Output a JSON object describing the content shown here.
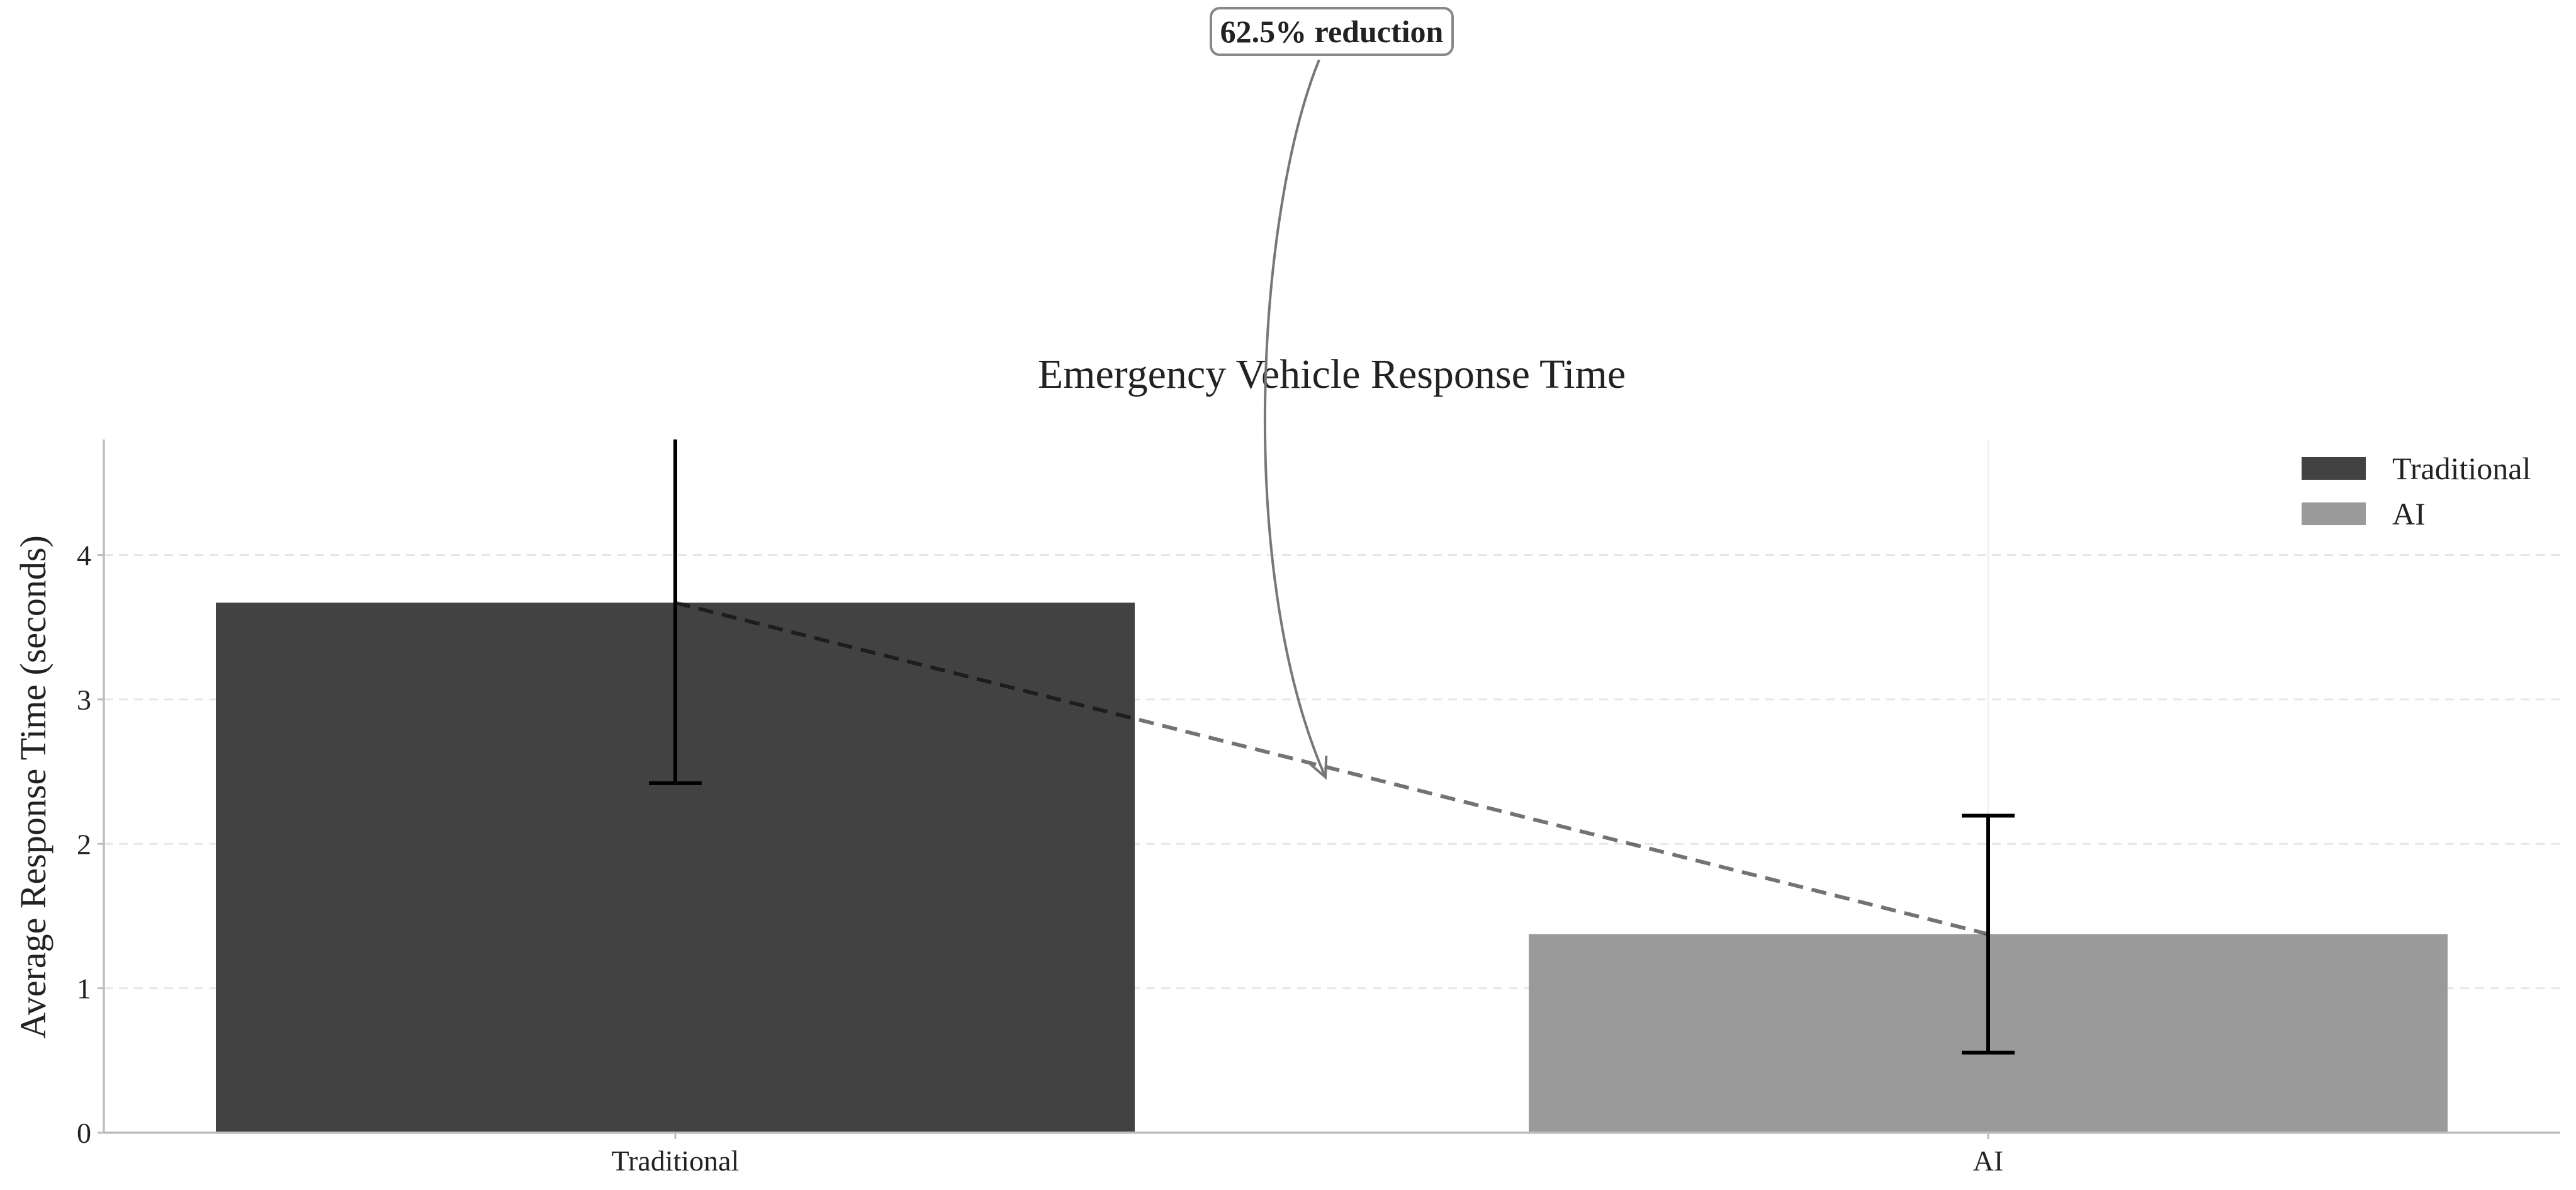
{
  "chart_data": {
    "type": "bar",
    "title": "Emergency Vehicle Response Time",
    "xlabel": "",
    "ylabel": "Average Response Time (seconds)",
    "categories": [
      "Traditional",
      "AI"
    ],
    "values": [
      3.67,
      1.375
    ],
    "errors": [
      1.25,
      0.82
    ],
    "colors": [
      "#424242",
      "#9a9a9a"
    ],
    "ylim": [
      0,
      4.8
    ],
    "yticks": [
      0,
      1,
      2,
      3,
      4
    ],
    "grid": true,
    "legend": {
      "placement": "top-right",
      "entries": [
        {
          "label": "Traditional",
          "color": "#424242"
        },
        {
          "label": "AI",
          "color": "#9a9a9a"
        }
      ]
    },
    "trend_line": {
      "style": "dashed",
      "from": "Traditional",
      "to": "AI"
    },
    "annotation": {
      "text": "62.5% reduction",
      "points_to": "midpoint of trend line"
    }
  }
}
